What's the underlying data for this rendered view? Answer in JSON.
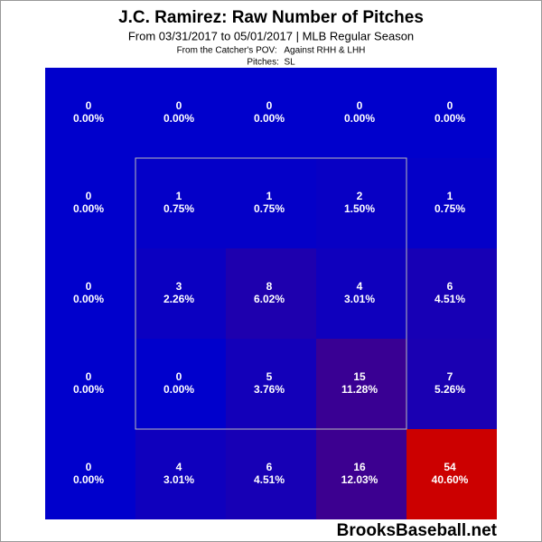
{
  "chart_data": {
    "type": "heatmap",
    "title": "J.C. Ramirez: Raw Number of Pitches",
    "subtitle": "From 03/31/2017 to 05/01/2017 | MLB Regular Season",
    "notes": [
      "From the Catcher's POV:   Against RHH & LHH",
      "Pitches:  SL"
    ],
    "source": "BrooksBaseball.net",
    "color_scale": [
      "#0000cc",
      "#cc0000"
    ],
    "values": [
      [
        0,
        0,
        0,
        0,
        0
      ],
      [
        0,
        1,
        1,
        2,
        1
      ],
      [
        0,
        3,
        8,
        4,
        6
      ],
      [
        0,
        0,
        5,
        15,
        7
      ],
      [
        0,
        4,
        6,
        16,
        54
      ]
    ],
    "percents": [
      [
        0,
        0,
        0,
        0,
        0
      ],
      [
        0,
        0.75,
        0.75,
        1.5,
        0.75
      ],
      [
        0,
        2.26,
        6.02,
        3.01,
        4.51
      ],
      [
        0,
        0,
        3.76,
        11.28,
        5.26
      ],
      [
        0,
        3.01,
        4.51,
        12.03,
        40.6
      ]
    ],
    "percent_labels": [
      [
        "0.00%",
        "0.00%",
        "0.00%",
        "0.00%",
        "0.00%"
      ],
      [
        "0.00%",
        "0.75%",
        "0.75%",
        "1.50%",
        "0.75%"
      ],
      [
        "0.00%",
        "2.26%",
        "6.02%",
        "3.01%",
        "4.51%"
      ],
      [
        "0.00%",
        "0.00%",
        "3.76%",
        "11.28%",
        "5.26%"
      ],
      [
        "0.00%",
        "3.01%",
        "4.51%",
        "12.03%",
        "40.60%"
      ]
    ]
  }
}
